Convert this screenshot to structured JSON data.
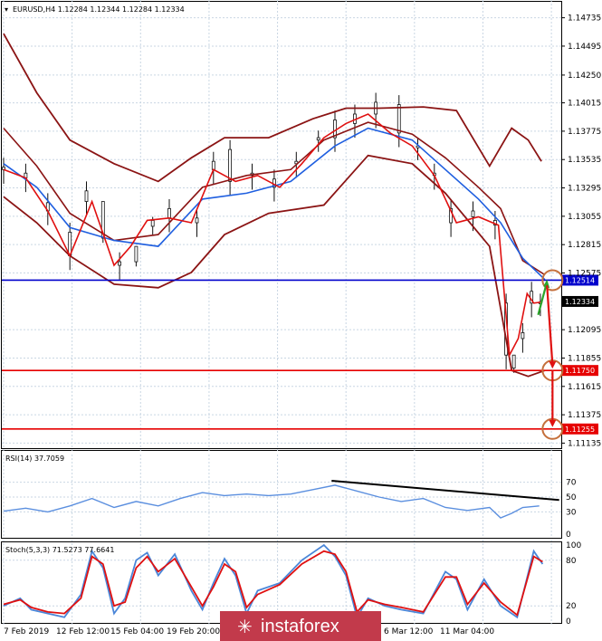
{
  "chart_data": [
    {
      "type": "candlestick",
      "panel": "price",
      "header": "EURUSD,H4  1.12284 1.12344 1.12284 1.12334",
      "y_ticks": [
        "1.14735",
        "1.14495",
        "1.14250",
        "1.14015",
        "1.13775",
        "1.13535",
        "1.13295",
        "1.13055",
        "1.12815",
        "1.12575",
        "1.12095",
        "1.11855",
        "1.11615",
        "1.11375",
        "1.11135"
      ],
      "ylim": [
        1.111,
        1.1487
      ],
      "x_ticks": [
        "7 Feb 2019",
        "12 Feb 12:00",
        "15 Feb 04:00",
        "19 Feb 20:00",
        "6 Mar 12:00",
        "11 Mar 04:00"
      ],
      "current_price": {
        "label": "1.12334",
        "value": 1.12334
      },
      "levels": [
        {
          "label": "1.12514",
          "value": 1.12514,
          "color": "#0000cc"
        },
        {
          "label": "1.11750",
          "value": 1.1175,
          "color": "#e60000"
        },
        {
          "label": "1.11255",
          "value": 1.11255,
          "color": "#e60000"
        }
      ],
      "price_path": [
        [
          0,
          1.1345
        ],
        [
          20,
          1.1338
        ],
        [
          40,
          1.131
        ],
        [
          60,
          1.1272
        ],
        [
          80,
          1.1318
        ],
        [
          100,
          1.1264
        ],
        [
          115,
          1.128
        ],
        [
          130,
          1.1302
        ],
        [
          150,
          1.1304
        ],
        [
          170,
          1.13
        ],
        [
          190,
          1.1345
        ],
        [
          210,
          1.1335
        ],
        [
          230,
          1.134
        ],
        [
          250,
          1.133
        ],
        [
          270,
          1.135
        ],
        [
          290,
          1.1372
        ],
        [
          310,
          1.1384
        ],
        [
          330,
          1.1392
        ],
        [
          350,
          1.1376
        ],
        [
          370,
          1.1365
        ],
        [
          390,
          1.134
        ],
        [
          410,
          1.13
        ],
        [
          430,
          1.1305
        ],
        [
          448,
          1.1298
        ],
        [
          458,
          1.1188
        ],
        [
          466,
          1.1202
        ],
        [
          474,
          1.124
        ],
        [
          480,
          1.1232
        ],
        [
          488,
          1.1233
        ]
      ],
      "bands_upper": [
        [
          0,
          1.146
        ],
        [
          30,
          1.141
        ],
        [
          60,
          1.137
        ],
        [
          100,
          1.135
        ],
        [
          140,
          1.1335
        ],
        [
          170,
          1.1355
        ],
        [
          200,
          1.1372
        ],
        [
          240,
          1.1372
        ],
        [
          280,
          1.1388
        ],
        [
          310,
          1.1397
        ],
        [
          340,
          1.1397
        ],
        [
          380,
          1.1398
        ],
        [
          410,
          1.1395
        ],
        [
          440,
          1.1348
        ],
        [
          460,
          1.138
        ],
        [
          475,
          1.137
        ],
        [
          487,
          1.1352
        ]
      ],
      "bands_mid": [
        [
          0,
          1.138
        ],
        [
          30,
          1.1348
        ],
        [
          60,
          1.1308
        ],
        [
          100,
          1.1285
        ],
        [
          140,
          1.129
        ],
        [
          180,
          1.133
        ],
        [
          220,
          1.134
        ],
        [
          260,
          1.1345
        ],
        [
          290,
          1.137
        ],
        [
          330,
          1.1385
        ],
        [
          370,
          1.1375
        ],
        [
          400,
          1.1355
        ],
        [
          430,
          1.133
        ],
        [
          450,
          1.1312
        ],
        [
          470,
          1.1268
        ],
        [
          490,
          1.1256
        ]
      ],
      "bands_lower": [
        [
          0,
          1.1322
        ],
        [
          30,
          1.13
        ],
        [
          60,
          1.1272
        ],
        [
          100,
          1.1248
        ],
        [
          140,
          1.1245
        ],
        [
          170,
          1.1258
        ],
        [
          200,
          1.129
        ],
        [
          240,
          1.1308
        ],
        [
          290,
          1.1315
        ],
        [
          330,
          1.1357
        ],
        [
          370,
          1.135
        ],
        [
          400,
          1.1325
        ],
        [
          440,
          1.128
        ],
        [
          460,
          1.1175
        ],
        [
          475,
          1.117
        ],
        [
          490,
          1.1175
        ]
      ],
      "ema": [
        [
          0,
          1.135
        ],
        [
          30,
          1.133
        ],
        [
          60,
          1.1296
        ],
        [
          100,
          1.1285
        ],
        [
          140,
          1.128
        ],
        [
          180,
          1.132
        ],
        [
          220,
          1.1325
        ],
        [
          260,
          1.1335
        ],
        [
          300,
          1.1365
        ],
        [
          330,
          1.138
        ],
        [
          370,
          1.137
        ],
        [
          400,
          1.1345
        ],
        [
          430,
          1.132
        ],
        [
          450,
          1.13
        ],
        [
          470,
          1.127
        ],
        [
          490,
          1.1252
        ]
      ],
      "candles_highs": [
        [
          0,
          1.1355
        ],
        [
          20,
          1.135
        ],
        [
          40,
          1.1325
        ],
        [
          60,
          1.13
        ],
        [
          75,
          1.1335
        ],
        [
          90,
          1.1295
        ],
        [
          105,
          1.1275
        ],
        [
          120,
          1.1275
        ],
        [
          135,
          1.1305
        ],
        [
          150,
          1.132
        ],
        [
          175,
          1.1312
        ],
        [
          190,
          1.136
        ],
        [
          205,
          1.137
        ],
        [
          225,
          1.135
        ],
        [
          245,
          1.1345
        ],
        [
          265,
          1.136
        ],
        [
          285,
          1.1378
        ],
        [
          300,
          1.1395
        ],
        [
          318,
          1.14
        ],
        [
          337,
          1.141
        ],
        [
          358,
          1.1408
        ],
        [
          375,
          1.1372
        ],
        [
          390,
          1.135
        ],
        [
          405,
          1.132
        ],
        [
          425,
          1.1318
        ],
        [
          445,
          1.131
        ],
        [
          455,
          1.124
        ],
        [
          462,
          1.1185
        ],
        [
          470,
          1.1215
        ],
        [
          478,
          1.125
        ],
        [
          486,
          1.124
        ]
      ],
      "forecast_points": [
        [
          497,
          1.12514
        ],
        [
          497,
          1.1175
        ],
        [
          497,
          1.11255
        ]
      ]
    },
    {
      "type": "line",
      "panel": "rsi",
      "label": "RSI(14) 37.7059",
      "y_ticks": [
        "70",
        "50",
        "30",
        "0"
      ],
      "ylim": [
        0,
        100
      ],
      "values": [
        [
          0,
          31
        ],
        [
          20,
          35
        ],
        [
          40,
          30
        ],
        [
          60,
          38
        ],
        [
          80,
          48
        ],
        [
          100,
          36
        ],
        [
          120,
          44
        ],
        [
          140,
          38
        ],
        [
          160,
          48
        ],
        [
          180,
          56
        ],
        [
          200,
          52
        ],
        [
          220,
          54
        ],
        [
          240,
          52
        ],
        [
          260,
          54
        ],
        [
          280,
          60
        ],
        [
          300,
          66
        ],
        [
          320,
          58
        ],
        [
          340,
          50
        ],
        [
          360,
          44
        ],
        [
          380,
          48
        ],
        [
          400,
          36
        ],
        [
          420,
          32
        ],
        [
          440,
          36
        ],
        [
          450,
          22
        ],
        [
          460,
          28
        ],
        [
          470,
          36
        ],
        [
          485,
          38
        ]
      ],
      "trendline": [
        [
          297,
          72
        ],
        [
          503,
          46
        ]
      ]
    },
    {
      "type": "line",
      "panel": "stoch",
      "label": "Stoch(5,3,3) 71.5273 77.6641",
      "y_ticks": [
        "100",
        "80",
        "20",
        "0"
      ],
      "ylim": [
        0,
        100
      ],
      "main": [
        [
          0,
          20
        ],
        [
          15,
          30
        ],
        [
          25,
          15
        ],
        [
          40,
          10
        ],
        [
          55,
          5
        ],
        [
          70,
          35
        ],
        [
          80,
          92
        ],
        [
          90,
          70
        ],
        [
          100,
          10
        ],
        [
          110,
          30
        ],
        [
          120,
          80
        ],
        [
          130,
          90
        ],
        [
          140,
          60
        ],
        [
          155,
          88
        ],
        [
          170,
          40
        ],
        [
          180,
          15
        ],
        [
          190,
          50
        ],
        [
          200,
          82
        ],
        [
          210,
          60
        ],
        [
          220,
          10
        ],
        [
          230,
          40
        ],
        [
          250,
          50
        ],
        [
          270,
          80
        ],
        [
          290,
          100
        ],
        [
          300,
          85
        ],
        [
          310,
          60
        ],
        [
          320,
          5
        ],
        [
          330,
          30
        ],
        [
          345,
          20
        ],
        [
          360,
          15
        ],
        [
          380,
          10
        ],
        [
          400,
          65
        ],
        [
          410,
          55
        ],
        [
          420,
          15
        ],
        [
          435,
          55
        ],
        [
          450,
          20
        ],
        [
          465,
          5
        ],
        [
          480,
          92
        ],
        [
          488,
          75
        ]
      ],
      "signal": [
        [
          0,
          22
        ],
        [
          15,
          28
        ],
        [
          25,
          18
        ],
        [
          40,
          12
        ],
        [
          55,
          10
        ],
        [
          70,
          30
        ],
        [
          80,
          85
        ],
        [
          90,
          75
        ],
        [
          100,
          20
        ],
        [
          110,
          25
        ],
        [
          120,
          70
        ],
        [
          130,
          85
        ],
        [
          140,
          65
        ],
        [
          155,
          82
        ],
        [
          170,
          45
        ],
        [
          180,
          20
        ],
        [
          190,
          45
        ],
        [
          200,
          75
        ],
        [
          210,
          65
        ],
        [
          220,
          18
        ],
        [
          230,
          35
        ],
        [
          250,
          48
        ],
        [
          270,
          75
        ],
        [
          290,
          92
        ],
        [
          300,
          88
        ],
        [
          310,
          65
        ],
        [
          320,
          12
        ],
        [
          330,
          28
        ],
        [
          345,
          22
        ],
        [
          360,
          18
        ],
        [
          380,
          12
        ],
        [
          400,
          58
        ],
        [
          410,
          58
        ],
        [
          420,
          22
        ],
        [
          435,
          50
        ],
        [
          450,
          25
        ],
        [
          465,
          8
        ],
        [
          480,
          85
        ],
        [
          488,
          78
        ]
      ]
    }
  ],
  "colors": {
    "grid": "#c9d6e3",
    "bands": "#8b1414",
    "ema": "#1f5fe0",
    "price": "#e01010",
    "candle": "#101010",
    "rsi": "#5b8fdf",
    "stoch_main": "#4a86d8",
    "stoch_signal": "#e01010",
    "trendline": "#000000",
    "circle": "#c5703c",
    "arrow_up": "#2aa52a",
    "arrow_down": "#e01010",
    "watermark_bg": "#c23a4b"
  },
  "watermark": "instaforex"
}
